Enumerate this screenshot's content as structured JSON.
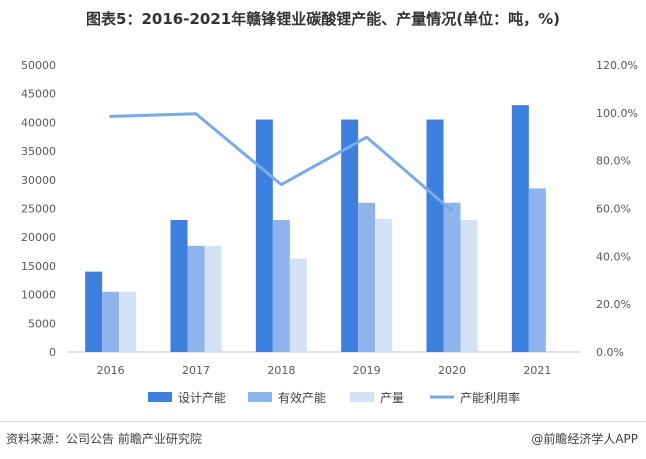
{
  "chart_data": {
    "type": "bar",
    "title": "图表5：2016-2021年赣锋锂业碳酸锂产能、产量情况(单位：吨，%)",
    "categories": [
      "2016",
      "2017",
      "2018",
      "2019",
      "2020",
      "2021"
    ],
    "series": [
      {
        "name": "设计产能",
        "type": "bar",
        "axis": "left",
        "color": "#3f7fde",
        "values": [
          14000,
          23000,
          40500,
          40500,
          40500,
          43000
        ]
      },
      {
        "name": "有效产能",
        "type": "bar",
        "axis": "left",
        "color": "#8db4ec",
        "values": [
          10500,
          18500,
          23000,
          26000,
          26000,
          28500
        ]
      },
      {
        "name": "产量",
        "type": "bar",
        "axis": "left",
        "color": "#d3e2f7",
        "values": [
          10500,
          18500,
          16300,
          23200,
          23000,
          null
        ]
      },
      {
        "name": "产能利用率",
        "type": "line",
        "axis": "right",
        "color": "#7aaae8",
        "values": [
          98.5,
          99.6,
          70.0,
          89.8,
          59.0,
          null
        ]
      }
    ],
    "y_left": {
      "ylim": [
        0,
        50000
      ],
      "ticks": [
        "0",
        "5000",
        "10000",
        "15000",
        "20000",
        "25000",
        "30000",
        "35000",
        "40000",
        "45000",
        "50000"
      ]
    },
    "y_right": {
      "ylim": [
        0,
        120
      ],
      "ticks": [
        "0.0%",
        "20.0%",
        "40.0%",
        "60.0%",
        "80.0%",
        "100.0%",
        "120.0%"
      ]
    },
    "grid": false,
    "legend_position": "bottom"
  },
  "footer": {
    "source": "资料来源：公司公告 前瞻产业研究院",
    "brand": "@前瞻经济学人APP"
  }
}
